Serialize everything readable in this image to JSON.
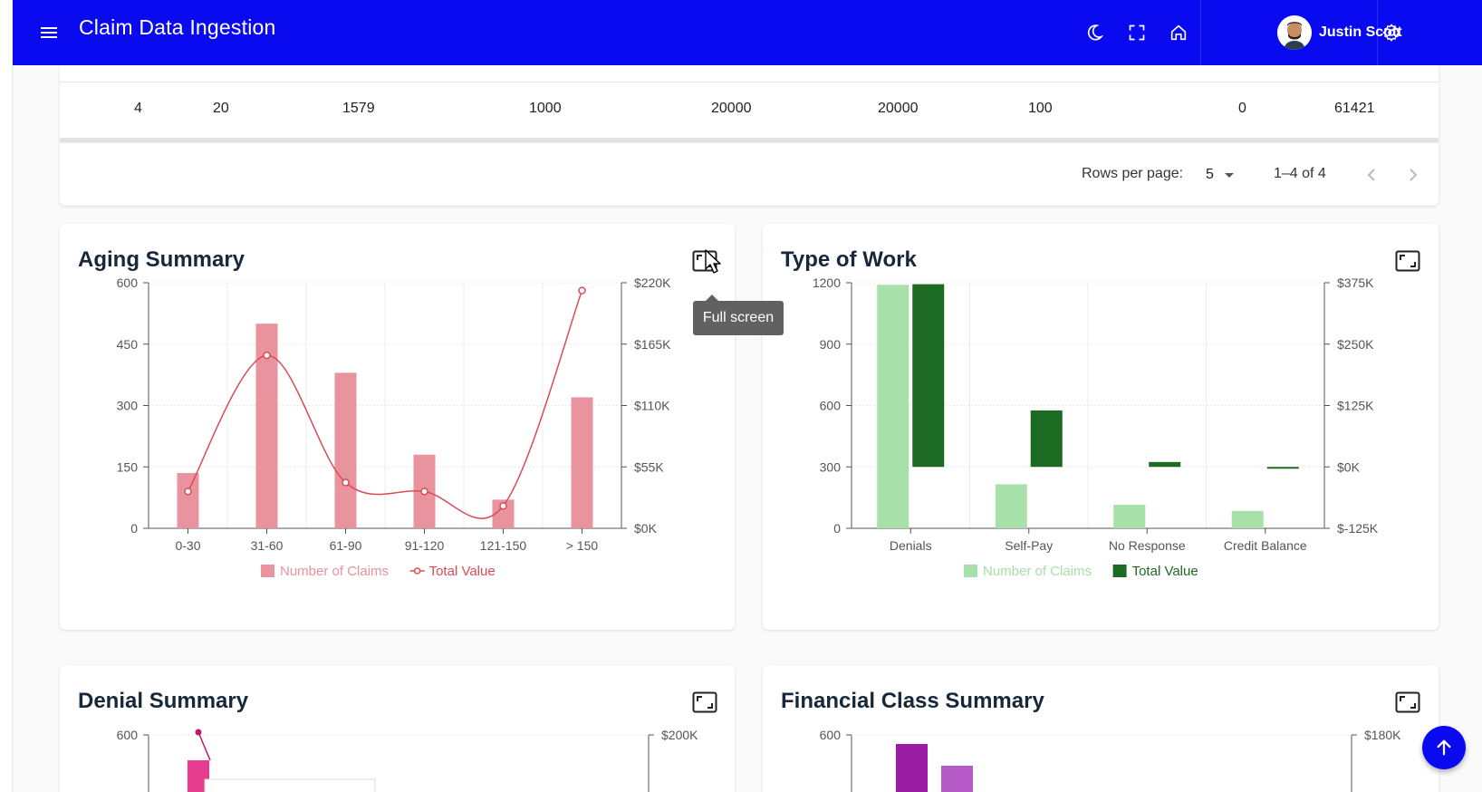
{
  "header": {
    "title": "Claim Data Ingestion",
    "user_name": "Justin Scott",
    "colors": {
      "appbar": "#0a0af0"
    }
  },
  "table": {
    "row": [
      "4",
      "20",
      "1579",
      "1000",
      "20000",
      "20000",
      "100",
      "0",
      "61421"
    ],
    "pager": {
      "rows_per_page_label": "Rows per page:",
      "rows_per_page_value": "5",
      "range": "1–4 of 4"
    }
  },
  "tooltip": {
    "text": "Full screen"
  },
  "cards": {
    "aging": {
      "title": "Aging Summary"
    },
    "type_of_work": {
      "title": "Type of Work"
    },
    "denial": {
      "title": "Denial Summary"
    },
    "financial": {
      "title": "Financial Class Summary"
    }
  },
  "chart_data": [
    {
      "type": "bar",
      "id": "aging",
      "title": "Aging Summary",
      "categories": [
        "0-30",
        "31-60",
        "61-90",
        "91-120",
        "121-150",
        "> 150"
      ],
      "series": [
        {
          "name": "Number of Claims",
          "type": "bar",
          "axis": "left",
          "color": "#e8939d",
          "values": [
            135,
            500,
            380,
            180,
            70,
            320
          ]
        },
        {
          "name": "Total Value",
          "type": "line",
          "axis": "right",
          "color": "#d94c55",
          "values": [
            33000,
            155000,
            41000,
            33000,
            20000,
            213000
          ]
        }
      ],
      "y_left": {
        "ticks": [
          "0",
          "150",
          "300",
          "450",
          "600"
        ],
        "min": 0,
        "max": 600
      },
      "y_right": {
        "ticks": [
          "$0K",
          "$55K",
          "$110K",
          "$165K",
          "$220K"
        ],
        "min": 0,
        "max": 220000
      },
      "legend_position": "bottom"
    },
    {
      "type": "bar",
      "id": "type_of_work",
      "title": "Type of Work",
      "categories": [
        "Denials",
        "Self-Pay",
        "No Response",
        "Credit Balance"
      ],
      "series": [
        {
          "name": "Number of Claims",
          "type": "bar",
          "axis": "left",
          "color": "#a7e0a8",
          "values": [
            1190,
            215,
            115,
            85
          ]
        },
        {
          "name": "Total Value",
          "type": "bar",
          "axis": "right",
          "color": "#1d6b22",
          "values": [
            372000,
            115000,
            10000,
            -3000
          ]
        }
      ],
      "y_left": {
        "ticks": [
          "0",
          "300",
          "600",
          "900",
          "1200"
        ],
        "min": 0,
        "max": 1200
      },
      "y_right": {
        "ticks": [
          "$-125K",
          "$0K",
          "$125K",
          "$250K",
          "$375K"
        ],
        "min": -125000,
        "max": 375000
      },
      "legend_position": "bottom"
    }
  ],
  "partial_charts": {
    "denial": {
      "y_left_top": "600",
      "y_right_top": "$200K"
    },
    "financial": {
      "y_left_top": "600",
      "y_right_top": "$180K"
    }
  }
}
